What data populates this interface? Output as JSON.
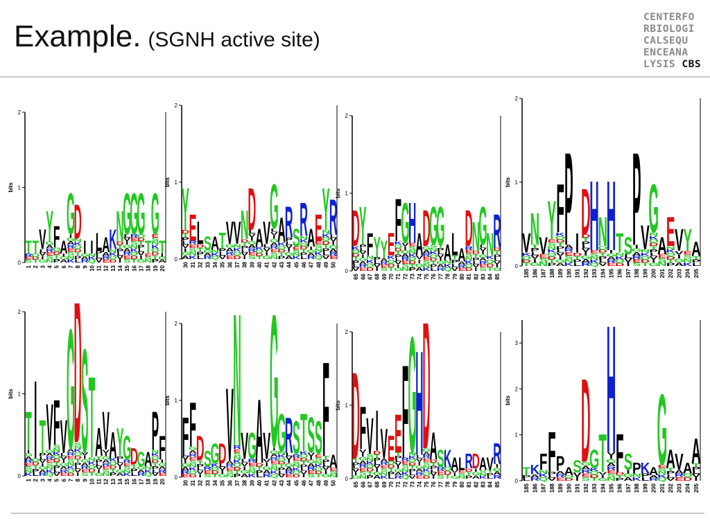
{
  "title": {
    "main": "Example.",
    "sub": "(SGNH active site)"
  },
  "brand": {
    "lines": [
      "CENTERFO",
      "RBIOLOGI",
      "CALSEQU",
      "ENCEANA",
      "LYSIS"
    ],
    "mark": "CBS"
  },
  "colors": {
    "green": "#22c822",
    "red": "#e01010",
    "blue": "#1020d0",
    "black": "#000000"
  },
  "chart_data": [
    {
      "type": "sequence-logo",
      "ylabel": "bits",
      "yticks": [
        "0",
        "1",
        "2"
      ],
      "ylim": [
        0,
        2
      ],
      "xticks": [
        "1",
        "2",
        "3",
        "4",
        "5",
        "6",
        "7",
        "8",
        "9",
        "10",
        "11",
        "12",
        "13",
        "14",
        "15",
        "16",
        "17",
        "18",
        "19",
        "20"
      ],
      "top_letters": [
        "T",
        "T",
        "V",
        "Y",
        "F",
        "A",
        "G",
        "D",
        "I",
        "I",
        "L",
        "A",
        "K",
        "N",
        "G",
        "G",
        "G",
        "T",
        "G",
        "T"
      ],
      "heights": [
        0.3,
        0.3,
        0.45,
        0.7,
        0.5,
        0.3,
        0.95,
        0.8,
        0.3,
        0.3,
        0.4,
        0.35,
        0.45,
        0.7,
        0.95,
        0.95,
        0.95,
        0.3,
        0.95,
        0.3
      ]
    },
    {
      "type": "sequence-logo",
      "ylabel": "bits",
      "yticks": [
        "0",
        "1",
        "2"
      ],
      "ylim": [
        0,
        2
      ],
      "xticks": [
        "30",
        "31",
        "32",
        "33",
        "34",
        "35",
        "36",
        "37",
        "38",
        "39",
        "40",
        "41",
        "42",
        "43",
        "44",
        "45",
        "46",
        "47",
        "48",
        "49",
        "50"
      ],
      "top_letters": [
        "Y",
        "E",
        "L",
        "S",
        "A",
        "T",
        "V",
        "V",
        "N",
        "D",
        "A",
        "V",
        "G",
        "A",
        "R",
        "S",
        "R",
        "A",
        "E",
        "Y",
        "R"
      ],
      "heights": [
        0.95,
        0.6,
        0.5,
        0.3,
        0.3,
        0.35,
        0.5,
        0.5,
        0.65,
        0.95,
        0.4,
        0.5,
        1.0,
        0.55,
        0.7,
        0.4,
        0.75,
        0.4,
        0.6,
        0.95,
        0.8
      ]
    },
    {
      "type": "sequence-logo",
      "ylabel": "bits",
      "yticks": [
        "0",
        "1",
        "2"
      ],
      "ylim": [
        0,
        2
      ],
      "xticks": [
        "65",
        "66",
        "67",
        "68",
        "69",
        "70",
        "71",
        "72",
        "73",
        "74",
        "75",
        "76",
        "77",
        "78",
        "79",
        "80",
        "81",
        "82",
        "83",
        "84",
        "85"
      ],
      "top_letters": [
        "D",
        "Y",
        "F",
        "Y",
        "Y",
        "E",
        "F",
        "G",
        "H",
        "A",
        "D",
        "G",
        "G",
        "A",
        "L",
        "A",
        "D",
        "N",
        "G",
        "N",
        "R"
      ],
      "heights": [
        0.8,
        0.85,
        0.5,
        0.45,
        0.4,
        0.5,
        0.95,
        0.9,
        0.9,
        0.5,
        0.8,
        0.85,
        0.85,
        0.35,
        0.5,
        0.3,
        0.8,
        0.65,
        0.85,
        0.5,
        0.75
      ]
    },
    {
      "type": "sequence-logo",
      "ylabel": "bits",
      "yticks": [
        "0",
        "1",
        "2"
      ],
      "ylim": [
        0,
        2
      ],
      "xticks": [
        "185",
        "186",
        "187",
        "188",
        "189",
        "190",
        "191",
        "192",
        "193",
        "194",
        "195",
        "196",
        "197",
        "198",
        "199",
        "200",
        "201",
        "202",
        "203",
        "204",
        "205"
      ],
      "top_letters": [
        "V",
        "N",
        "V",
        "Y",
        "F",
        "P",
        "I",
        "D",
        "H",
        "N",
        "H",
        "T",
        "S",
        "P",
        "V",
        "G",
        "A",
        "E",
        "V",
        "Y",
        "A"
      ],
      "heights": [
        0.4,
        0.65,
        0.35,
        0.8,
        1.0,
        1.4,
        0.4,
        0.95,
        1.05,
        0.6,
        1.05,
        0.4,
        0.35,
        1.4,
        0.5,
        1.0,
        0.35,
        0.6,
        0.45,
        0.45,
        0.3
      ]
    },
    {
      "type": "sequence-logo",
      "ylabel": "bits",
      "yticks": [
        "0",
        "1",
        "2"
      ],
      "ylim": [
        0,
        2
      ],
      "xticks": [
        "1",
        "2",
        "3",
        "4",
        "5",
        "6",
        "7",
        "8",
        "9",
        "10",
        "11",
        "12",
        "13",
        "14",
        "15",
        "16",
        "17",
        "18",
        "19",
        "20"
      ],
      "top_letters": [
        "T",
        "I",
        "T",
        "V",
        "F",
        "V",
        "G",
        "D",
        "S",
        "T",
        "A",
        "V",
        "A",
        "Y",
        "G",
        "D",
        "G",
        "A",
        "P",
        "F"
      ],
      "heights": [
        0.8,
        1.2,
        0.7,
        0.9,
        0.95,
        0.7,
        1.85,
        2.3,
        1.6,
        1.25,
        0.6,
        0.8,
        0.55,
        0.6,
        0.5,
        0.35,
        0.3,
        0.3,
        0.8,
        0.5
      ]
    },
    {
      "type": "sequence-logo",
      "ylabel": "bits",
      "yticks": [
        "0",
        "1",
        "2"
      ],
      "ylim": [
        0,
        2
      ],
      "xticks": [
        "30",
        "31",
        "32",
        "33",
        "34",
        "35",
        "36",
        "37",
        "38",
        "39",
        "40",
        "41",
        "42",
        "43",
        "44",
        "45",
        "46",
        "47",
        "48",
        "49",
        "50"
      ],
      "top_letters": [
        "F",
        "F",
        "D",
        "S",
        "G",
        "D",
        "V",
        "N",
        "V",
        "G",
        "A",
        "V",
        "G",
        "G",
        "R",
        "S",
        "T",
        "S",
        "S",
        "F",
        "A"
      ],
      "heights": [
        0.8,
        1.0,
        0.55,
        0.35,
        0.45,
        0.45,
        1.2,
        2.3,
        0.6,
        0.6,
        1.05,
        0.6,
        2.2,
        0.85,
        0.8,
        0.75,
        0.85,
        0.8,
        0.75,
        1.55,
        0.3
      ]
    },
    {
      "type": "sequence-logo",
      "ylabel": "bits",
      "yticks": [
        "0",
        "1",
        "2"
      ],
      "ylim": [
        0,
        2
      ],
      "xticks": [
        "65",
        "66",
        "67",
        "68",
        "69",
        "70",
        "71",
        "72",
        "73",
        "74",
        "75",
        "76",
        "77",
        "78",
        "79",
        "80",
        "81",
        "82",
        "83",
        "84",
        "85"
      ],
      "top_letters": [
        "D",
        "F",
        "V",
        "I",
        "V",
        "E",
        "E",
        "F",
        "G",
        "H",
        "D",
        "A",
        "S",
        "K",
        "A",
        "L",
        "R",
        "D",
        "A",
        "V",
        "R"
      ],
      "heights": [
        1.5,
        1.0,
        0.85,
        0.95,
        0.7,
        0.6,
        0.9,
        1.6,
        2.0,
        1.8,
        2.3,
        0.65,
        0.4,
        0.4,
        0.3,
        0.3,
        0.35,
        0.35,
        0.3,
        0.3,
        0.5
      ]
    },
    {
      "type": "sequence-logo",
      "ylabel": "bits",
      "yticks": [
        "0",
        "1",
        "2",
        "3"
      ],
      "ylim": [
        0,
        3.5
      ],
      "xticks": [
        "185",
        "186",
        "187",
        "188",
        "189",
        "190",
        "191",
        "192",
        "193",
        "194",
        "195",
        "196",
        "197",
        "198",
        "199",
        "200",
        "201",
        "202",
        "203",
        "204",
        "205"
      ],
      "top_letters": [
        "T",
        "K",
        "F",
        "F",
        "P",
        "A",
        "S",
        "D",
        "G",
        "T",
        "H",
        "F",
        "S",
        "P",
        "K",
        "A",
        "G",
        "A",
        "V",
        "A",
        "A"
      ],
      "heights": [
        0.3,
        0.35,
        0.6,
        1.1,
        0.55,
        0.3,
        0.45,
        2.3,
        0.7,
        1.05,
        3.5,
        1.05,
        0.6,
        0.4,
        0.4,
        0.3,
        1.95,
        0.7,
        0.6,
        0.4,
        0.95
      ]
    }
  ]
}
